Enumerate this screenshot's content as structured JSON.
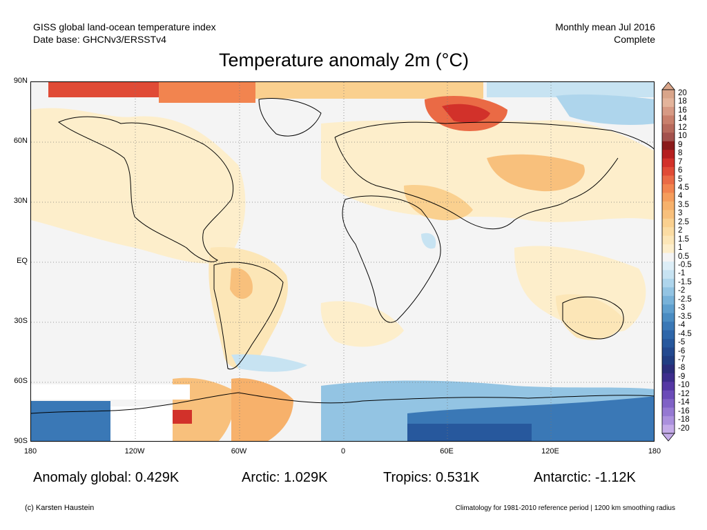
{
  "header": {
    "dataset": "GISS global land-ocean temperature index",
    "database": "Date base: GHCNv3/ERSSTv4",
    "period": "Monthly mean Jul 2016",
    "status": "Complete"
  },
  "title": "Temperature anomaly 2m (°C)",
  "axes": {
    "lat_labels": [
      "90N",
      "60N",
      "30N",
      "EQ",
      "30S",
      "60S",
      "90S"
    ],
    "lon_labels": [
      "180",
      "120W",
      "60W",
      "0",
      "60E",
      "120E",
      "180"
    ]
  },
  "colorbar": {
    "levels": [
      "20",
      "18",
      "16",
      "14",
      "12",
      "10",
      "9",
      "8",
      "7",
      "6",
      "5",
      "4.5",
      "4",
      "3.5",
      "3",
      "2.5",
      "2",
      "1.5",
      "1",
      "0.5",
      "-0.5",
      "-1",
      "-1.5",
      "-2",
      "-2.5",
      "-3",
      "-3.5",
      "-4",
      "-4.5",
      "-5",
      "-6",
      "-7",
      "-8",
      "-9",
      "-10",
      "-12",
      "-14",
      "-16",
      "-18",
      "-20"
    ],
    "colors": [
      "#d9a58a",
      "#e4b49b",
      "#d79a84",
      "#c9806c",
      "#b76a5c",
      "#a3524d",
      "#8a1a1a",
      "#b51f1f",
      "#d2312a",
      "#e04b36",
      "#ea6a45",
      "#f2844f",
      "#f59d5c",
      "#f7b16b",
      "#f8c07c",
      "#fad08f",
      "#fbdca3",
      "#fce6b7",
      "#fdeecb",
      "#f4f4f4",
      "#ddeef7",
      "#c7e3f2",
      "#aed5ec",
      "#93c4e3",
      "#78b2d9",
      "#5f9fce",
      "#4a8cc2",
      "#3a78b6",
      "#2e66a9",
      "#27589d",
      "#23498f",
      "#213d82",
      "#2b2d7a",
      "#3d2d8c",
      "#5537a4",
      "#6b4bb8",
      "#8062c6",
      "#9578d2",
      "#ab90dd",
      "#c4abe8"
    ]
  },
  "stats": {
    "global": "Anomaly global: 0.429K",
    "arctic": "Arctic: 1.029K",
    "tropics": "Tropics: 0.531K",
    "antarctic": "Antarctic: -1.12K"
  },
  "footer": {
    "copyright": "(c) Karsten Haustein",
    "note": "Climatology for 1981-2010 reference period | 1200 km smoothing radius"
  }
}
